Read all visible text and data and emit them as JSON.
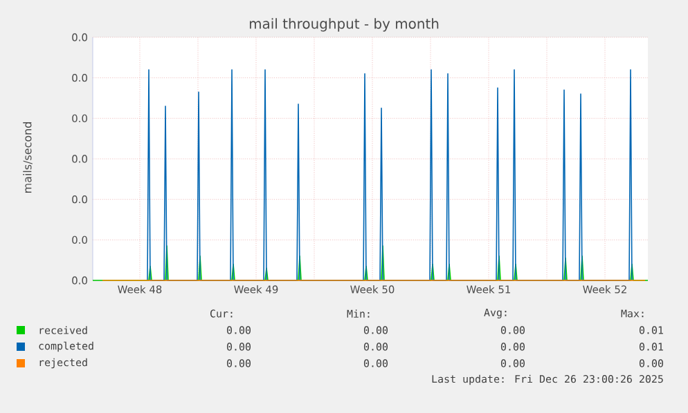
{
  "chart_data": {
    "type": "line",
    "title": "mail throughput - by month",
    "ylabel": "mails/second",
    "xlim": [
      "2025-11-23T16:00",
      "2025-12-27T02:00"
    ],
    "xticks": [
      {
        "value": "2025-11-26T12:00",
        "label": "Week 48"
      },
      {
        "value": "2025-12-03T12:00",
        "label": "Week 49"
      },
      {
        "value": "2025-12-10T12:00",
        "label": "Week 50"
      },
      {
        "value": "2025-12-17T12:00",
        "label": "Week 51"
      },
      {
        "value": "2025-12-24T12:00",
        "label": "Week 52"
      },
      {
        "value": "2025-11-30T00:00",
        "label": null
      },
      {
        "value": "2025-12-07T00:00",
        "label": null
      },
      {
        "value": "2025-12-14T00:00",
        "label": null
      },
      {
        "value": "2025-12-21T00:00",
        "label": null
      }
    ],
    "ylim": [
      0,
      0.012
    ],
    "yticks": [
      {
        "value": 0,
        "label": "0.0"
      },
      {
        "value": 0.002,
        "label": "0.0"
      },
      {
        "value": 0.004,
        "label": "0.0"
      },
      {
        "value": 0.006,
        "label": "0.0"
      },
      {
        "value": 0.008,
        "label": "0.0"
      },
      {
        "value": 0.01,
        "label": "0.0"
      },
      {
        "value": 0.012,
        "label": "0.0"
      }
    ],
    "grid": true,
    "legend": "bottom",
    "marker": "none",
    "line_style": "solid",
    "series": [
      {
        "name": "received",
        "color": "#00cc00",
        "x": [
          "2025-11-23T16:00",
          "2025-11-27T01:00",
          "2025-11-27T03:00",
          "2025-11-27T05:00",
          "2025-11-28T01:00",
          "2025-11-28T03:00",
          "2025-11-28T05:00",
          "2025-11-30T01:00",
          "2025-11-30T03:00",
          "2025-11-30T05:00",
          "2025-12-02T01:00",
          "2025-12-02T03:00",
          "2025-12-02T05:00",
          "2025-12-04T01:00",
          "2025-12-04T03:00",
          "2025-12-04T05:00",
          "2025-12-06T01:00",
          "2025-12-06T03:00",
          "2025-12-06T05:00",
          "2025-12-10T01:00",
          "2025-12-10T03:00",
          "2025-12-10T05:00",
          "2025-12-11T01:00",
          "2025-12-11T03:00",
          "2025-12-11T05:00",
          "2025-12-14T01:00",
          "2025-12-14T03:00",
          "2025-12-14T05:00",
          "2025-12-15T01:00",
          "2025-12-15T03:00",
          "2025-12-15T05:00",
          "2025-12-18T01:00",
          "2025-12-18T03:00",
          "2025-12-18T05:00",
          "2025-12-19T01:00",
          "2025-12-19T03:00",
          "2025-12-19T05:00",
          "2025-12-22T01:00",
          "2025-12-22T03:00",
          "2025-12-22T05:00",
          "2025-12-23T01:00",
          "2025-12-23T03:00",
          "2025-12-23T05:00",
          "2025-12-26T01:00",
          "2025-12-26T03:00",
          "2025-12-26T05:00",
          "2025-12-27T02:00"
        ],
        "values": [
          0,
          0,
          0.0007,
          0,
          0,
          0.0017,
          0,
          0,
          0.0012,
          0,
          0,
          0.0008,
          0,
          0,
          0.0006,
          0,
          0,
          0.0012,
          0,
          0,
          0.0007,
          0,
          0,
          0.0017,
          0,
          0,
          0.0008,
          0,
          0,
          0.0008,
          0,
          0,
          0.0012,
          0,
          0,
          0.0008,
          0,
          0,
          0.0011,
          0,
          0,
          0.0012,
          0,
          0,
          0.0008,
          0,
          0
        ]
      },
      {
        "name": "completed",
        "color": "#0066b3",
        "x": [
          "2025-11-26T23:00",
          "2025-11-27T01:00",
          "2025-11-27T03:00",
          "2025-11-27T23:00",
          "2025-11-28T01:00",
          "2025-11-28T03:00",
          "2025-11-29T23:00",
          "2025-11-30T01:00",
          "2025-11-30T03:00",
          "2025-12-01T23:00",
          "2025-12-02T01:00",
          "2025-12-02T03:00",
          "2025-12-03T23:00",
          "2025-12-04T01:00",
          "2025-12-04T03:00",
          "2025-12-05T23:00",
          "2025-12-06T01:00",
          "2025-12-06T03:00",
          "2025-12-09T23:00",
          "2025-12-10T01:00",
          "2025-12-10T03:00",
          "2025-12-10T23:00",
          "2025-12-11T01:00",
          "2025-12-11T03:00",
          "2025-12-13T23:00",
          "2025-12-14T01:00",
          "2025-12-14T03:00",
          "2025-12-14T23:00",
          "2025-12-15T01:00",
          "2025-12-15T03:00",
          "2025-12-17T23:00",
          "2025-12-18T01:00",
          "2025-12-18T03:00",
          "2025-12-18T23:00",
          "2025-12-19T01:00",
          "2025-12-19T03:00",
          "2025-12-21T23:00",
          "2025-12-22T01:00",
          "2025-12-22T03:00",
          "2025-12-22T23:00",
          "2025-12-23T01:00",
          "2025-12-23T03:00",
          "2025-12-25T23:00",
          "2025-12-26T01:00",
          "2025-12-26T03:00"
        ],
        "values": [
          0,
          0.0104,
          0,
          0,
          0.0086,
          0,
          0,
          0.0093,
          0,
          0,
          0.0104,
          0,
          0,
          0.0104,
          0,
          0,
          0.0087,
          0,
          0,
          0.0102,
          0,
          0,
          0.0085,
          0,
          0,
          0.0104,
          0,
          0,
          0.0102,
          0,
          0,
          0.0095,
          0,
          0,
          0.0104,
          0,
          0,
          0.0094,
          0,
          0,
          0.0092,
          0,
          0,
          0.0104,
          0
        ]
      },
      {
        "name": "rejected",
        "color": "#ff8000",
        "x": [
          "2025-11-24T06:00",
          "2025-12-26T22:00"
        ],
        "values": [
          0,
          0
        ]
      }
    ],
    "annotations": [
      "Cur:",
      "Min:",
      "Avg:",
      "Max:",
      "0.00",
      "0.00",
      "0.00",
      "0.01",
      "0.00",
      "0.00",
      "0.00",
      "0.01",
      "0.00",
      "0.00",
      "0.00",
      "0.00",
      "Last update: Fri Dec 26 23:00:26 2025"
    ]
  }
}
